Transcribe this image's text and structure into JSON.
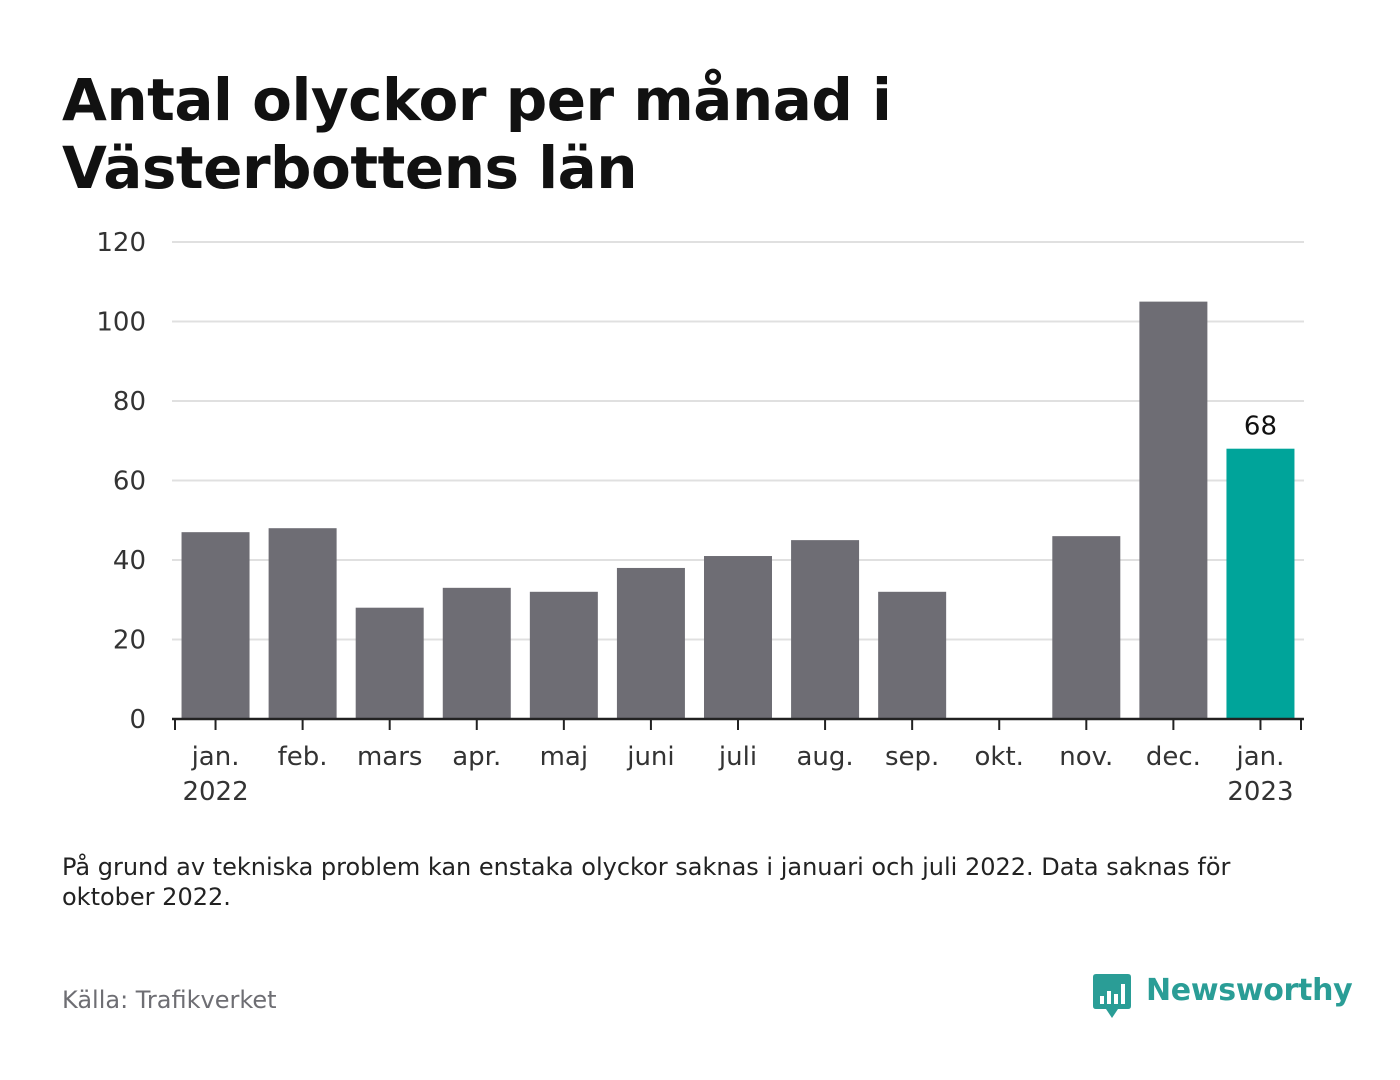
{
  "title": "Antal olyckor per månad i Västerbottens län",
  "note": "På grund av tekniska problem kan enstaka olyckor saknas i januari och juli 2022. Data saknas för oktober 2022.",
  "source": "Källa: Trafikverket",
  "brand": {
    "name": "Newsworthy",
    "logo_icon": "newsworthy-logo-icon",
    "color": "#2a9d96"
  },
  "colors": {
    "bar": "#6e6d74",
    "highlight": "#00a49a",
    "grid": "#e0e0e0",
    "axis": "#222222"
  },
  "chart_data": {
    "type": "bar",
    "categories": [
      [
        "jan.",
        "2022"
      ],
      [
        "feb."
      ],
      [
        "mars"
      ],
      [
        "apr."
      ],
      [
        "maj"
      ],
      [
        "juni"
      ],
      [
        "juli"
      ],
      [
        "aug."
      ],
      [
        "sep."
      ],
      [
        "okt."
      ],
      [
        "nov."
      ],
      [
        "dec."
      ],
      [
        "jan.",
        "2023"
      ]
    ],
    "values": [
      47,
      48,
      28,
      33,
      32,
      38,
      41,
      45,
      32,
      null,
      46,
      105,
      68
    ],
    "highlight_index": 12,
    "data_labels": [
      {
        "index": 12,
        "text": "68"
      }
    ],
    "yticks": [
      "0",
      "20",
      "40",
      "60",
      "80",
      "100",
      "120"
    ],
    "ylim": [
      0,
      120
    ],
    "grid": true
  }
}
